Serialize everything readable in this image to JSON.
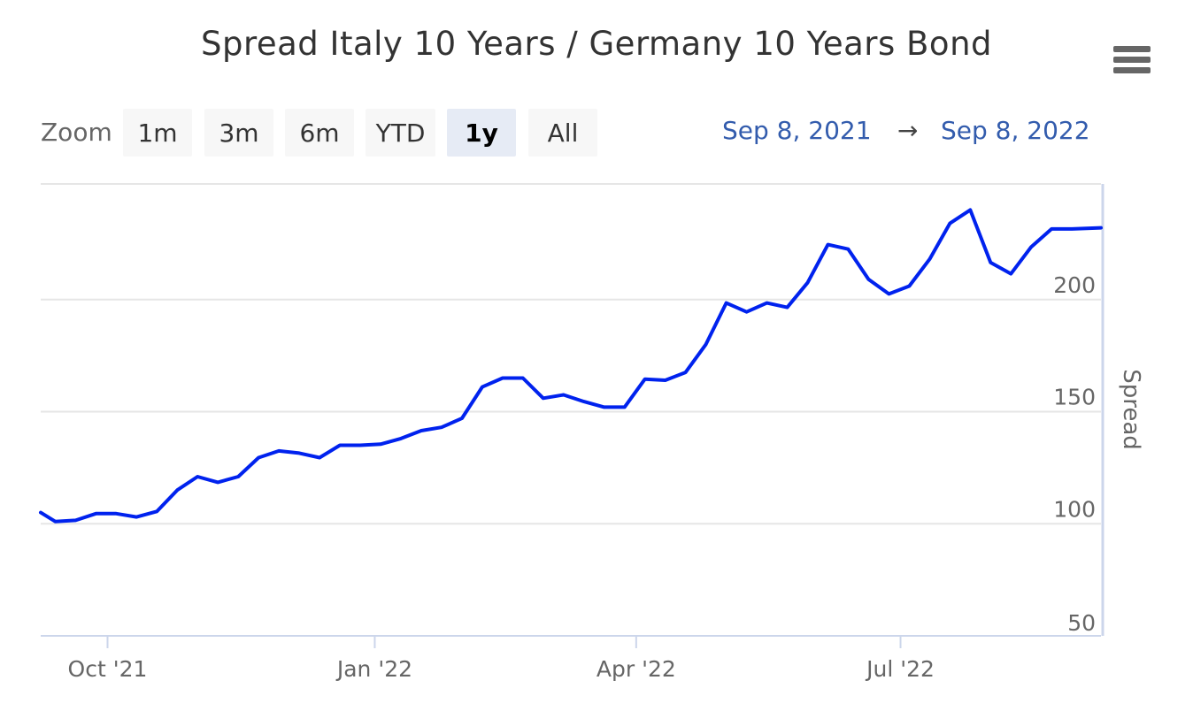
{
  "title": "Spread Italy 10 Years / Germany 10 Years Bond",
  "menu": {
    "icon": "hamburger-menu-icon"
  },
  "zoom": {
    "label": "Zoom",
    "buttons": [
      "1m",
      "3m",
      "6m",
      "YTD",
      "1y",
      "All"
    ],
    "active": "1y"
  },
  "range": {
    "from": "Sep 8, 2021",
    "arrow": "→",
    "to": "Sep 8, 2022"
  },
  "colors": {
    "line": "#0022ee",
    "grid": "#e6e6e6",
    "axis": "#ccd6eb",
    "range_text": "#335cad"
  },
  "chart_data": {
    "type": "line",
    "title": "Spread Italy 10 Years / Germany 10 Years Bond",
    "xlabel": "",
    "ylabel": "Spread",
    "xlim": [
      "2021-09-08",
      "2022-09-08"
    ],
    "ylim": [
      50,
      250
    ],
    "y_ticks": [
      50,
      100,
      150,
      200
    ],
    "x_ticks": [
      {
        "date": "2021-10-01",
        "label": "Oct '21"
      },
      {
        "date": "2022-01-01",
        "label": "Jan '22"
      },
      {
        "date": "2022-04-01",
        "label": "Apr '22"
      },
      {
        "date": "2022-07-01",
        "label": "Jul '22"
      }
    ],
    "grid": true,
    "y_axis_position": "right",
    "series": [
      {
        "values": [
          [
            "2021-09-08",
            105
          ],
          [
            "2021-09-13",
            101
          ],
          [
            "2021-09-20",
            101.5
          ],
          [
            "2021-09-27",
            104.5
          ],
          [
            "2021-10-04",
            104.5
          ],
          [
            "2021-10-11",
            103
          ],
          [
            "2021-10-18",
            105.5
          ],
          [
            "2021-10-25",
            115
          ],
          [
            "2021-11-01",
            121
          ],
          [
            "2021-11-08",
            118.5
          ],
          [
            "2021-11-15",
            121
          ],
          [
            "2021-11-22",
            129.5
          ],
          [
            "2021-11-29",
            132.5
          ],
          [
            "2021-12-06",
            131.5
          ],
          [
            "2021-12-13",
            129.5
          ],
          [
            "2021-12-20",
            135
          ],
          [
            "2021-12-27",
            135
          ],
          [
            "2022-01-03",
            135.5
          ],
          [
            "2022-01-10",
            138
          ],
          [
            "2022-01-17",
            141.5
          ],
          [
            "2022-01-24",
            143
          ],
          [
            "2022-01-31",
            147
          ],
          [
            "2022-02-07",
            161
          ],
          [
            "2022-02-14",
            165
          ],
          [
            "2022-02-21",
            165
          ],
          [
            "2022-02-28",
            156
          ],
          [
            "2022-03-07",
            157.5
          ],
          [
            "2022-03-14",
            154.5
          ],
          [
            "2022-03-21",
            152
          ],
          [
            "2022-03-28",
            152
          ],
          [
            "2022-04-04",
            164.5
          ],
          [
            "2022-04-11",
            164
          ],
          [
            "2022-04-18",
            167.5
          ],
          [
            "2022-04-25",
            180
          ],
          [
            "2022-05-02",
            198.5
          ],
          [
            "2022-05-09",
            194.5
          ],
          [
            "2022-05-16",
            198.5
          ],
          [
            "2022-05-23",
            196.5
          ],
          [
            "2022-05-30",
            207.5
          ],
          [
            "2022-06-06",
            224.5
          ],
          [
            "2022-06-13",
            222.5
          ],
          [
            "2022-06-20",
            209
          ],
          [
            "2022-06-27",
            202.5
          ],
          [
            "2022-07-04",
            206
          ],
          [
            "2022-07-11",
            218
          ],
          [
            "2022-07-18",
            234
          ],
          [
            "2022-07-25",
            240
          ],
          [
            "2022-08-01",
            216.5
          ],
          [
            "2022-08-08",
            211.5
          ],
          [
            "2022-08-15",
            223.5
          ],
          [
            "2022-08-22",
            231.5
          ],
          [
            "2022-08-29",
            231.5
          ],
          [
            "2022-09-08",
            232
          ]
        ]
      }
    ]
  }
}
